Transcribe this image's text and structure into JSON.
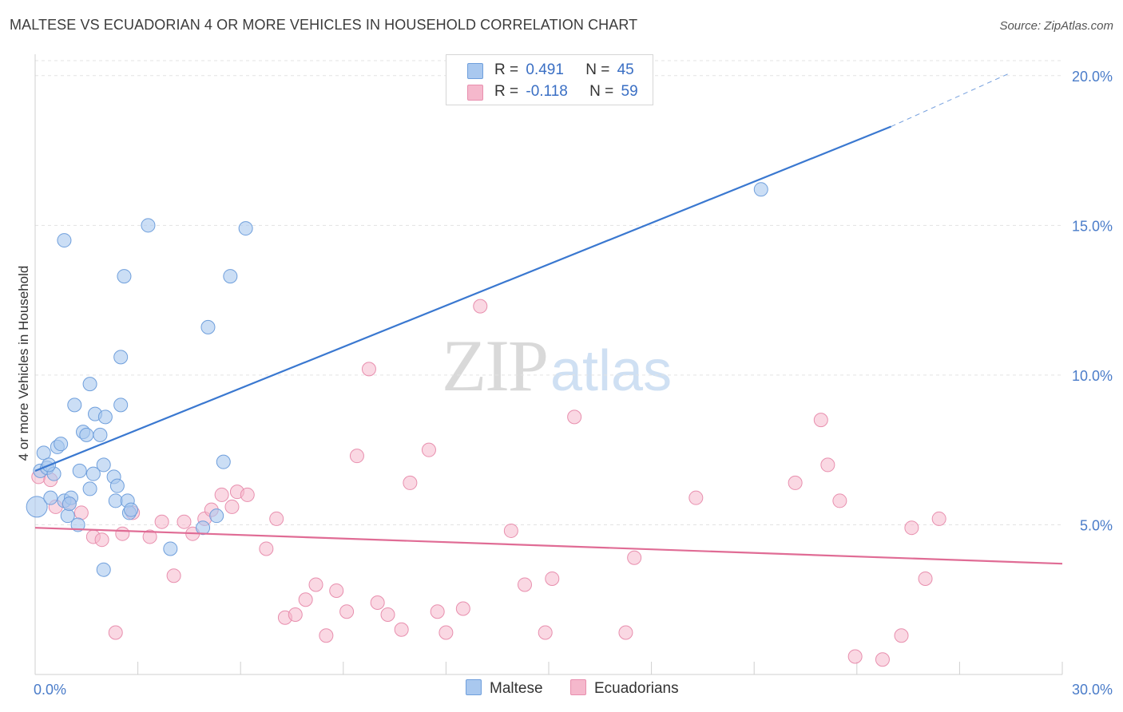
{
  "header": {
    "title": "MALTESE VS ECUADORIAN 4 OR MORE VEHICLES IN HOUSEHOLD CORRELATION CHART",
    "source": "Source: ZipAtlas.com"
  },
  "watermark": {
    "zip": "ZIP",
    "atlas": "atlas"
  },
  "legend": {
    "rows": [
      {
        "r_label": "R = ",
        "r_value": "0.491",
        "n_label": "N = ",
        "n_value": "45",
        "color": "#a9c8ef"
      },
      {
        "r_label": "R = ",
        "r_value": "-0.118",
        "n_label": "N = ",
        "n_value": "59",
        "color": "#f5b8cc"
      }
    ]
  },
  "bottom_legend": {
    "maltese": "Maltese",
    "ecuadorians": "Ecuadorians"
  },
  "colors": {
    "maltese_fill": "#a9c8ef",
    "maltese_stroke": "#6f9fdc",
    "maltese_line": "#3a78d0",
    "ecuador_fill": "#f5b8cc",
    "ecuador_stroke": "#e88fae",
    "ecuador_line": "#e06c95",
    "axis_label": "#4a7cc9",
    "grid": "#e3e3e3"
  },
  "chart_data": {
    "type": "scatter",
    "title": "MALTESE VS ECUADORIAN 4 OR MORE VEHICLES IN HOUSEHOLD CORRELATION CHART",
    "xlabel": "",
    "ylabel": "4 or more Vehicles in Household",
    "xlim": [
      0,
      30
    ],
    "ylim": [
      0,
      20.5
    ],
    "x_tick_labels": [
      {
        "value": 0,
        "label": "0.0%"
      },
      {
        "value": 30,
        "label": "30.0%"
      }
    ],
    "y_tick_labels": [
      {
        "value": 5,
        "label": "5.0%"
      },
      {
        "value": 10,
        "label": "10.0%"
      },
      {
        "value": 15,
        "label": "15.0%"
      },
      {
        "value": 20,
        "label": "20.0%"
      }
    ],
    "grid": true,
    "legend_position": "top-center",
    "series": [
      {
        "name": "Maltese",
        "r": 0.491,
        "n": 45,
        "trend": {
          "x0": 0,
          "y0": 6.8,
          "x1": 25,
          "y1": 18.3,
          "dashed_to_x": 28.5,
          "dashed_to_y": 20.1
        },
        "points": [
          [
            0.05,
            5.6
          ],
          [
            0.15,
            6.8
          ],
          [
            0.25,
            7.4
          ],
          [
            0.35,
            6.9
          ],
          [
            0.45,
            5.9
          ],
          [
            0.55,
            6.7
          ],
          [
            0.65,
            7.6
          ],
          [
            0.75,
            7.7
          ],
          [
            0.85,
            5.8
          ],
          [
            0.95,
            5.3
          ],
          [
            1.05,
            5.9
          ],
          [
            1.15,
            9.0
          ],
          [
            1.25,
            5.0
          ],
          [
            1.3,
            6.8
          ],
          [
            1.4,
            8.1
          ],
          [
            1.5,
            8.0
          ],
          [
            1.6,
            9.7
          ],
          [
            1.6,
            6.2
          ],
          [
            1.7,
            6.7
          ],
          [
            1.75,
            8.7
          ],
          [
            1.9,
            8.0
          ],
          [
            2.0,
            3.5
          ],
          [
            2.0,
            7.0
          ],
          [
            2.05,
            8.6
          ],
          [
            2.3,
            6.6
          ],
          [
            2.35,
            5.8
          ],
          [
            2.4,
            6.3
          ],
          [
            2.5,
            10.6
          ],
          [
            2.5,
            9.0
          ],
          [
            2.6,
            13.3
          ],
          [
            2.7,
            5.8
          ],
          [
            2.75,
            5.4
          ],
          [
            2.8,
            5.5
          ],
          [
            0.85,
            14.5
          ],
          [
            3.3,
            15.0
          ],
          [
            3.95,
            4.2
          ],
          [
            4.9,
            4.9
          ],
          [
            5.05,
            11.6
          ],
          [
            5.3,
            5.3
          ],
          [
            5.5,
            7.1
          ],
          [
            5.7,
            13.3
          ],
          [
            6.15,
            14.9
          ],
          [
            21.2,
            16.2
          ],
          [
            0.4,
            7.0
          ],
          [
            1.0,
            5.7
          ]
        ]
      },
      {
        "name": "Ecuadorians",
        "r": -0.118,
        "n": 59,
        "trend": {
          "x0": 0,
          "y0": 4.9,
          "x1": 30,
          "y1": 3.7
        },
        "points": [
          [
            0.1,
            6.6
          ],
          [
            0.45,
            6.5
          ],
          [
            0.6,
            5.6
          ],
          [
            1.0,
            5.7
          ],
          [
            1.35,
            5.4
          ],
          [
            1.7,
            4.6
          ],
          [
            1.95,
            4.5
          ],
          [
            2.35,
            1.4
          ],
          [
            2.55,
            4.7
          ],
          [
            2.85,
            5.4
          ],
          [
            3.35,
            4.6
          ],
          [
            3.7,
            5.1
          ],
          [
            4.05,
            3.3
          ],
          [
            4.35,
            5.1
          ],
          [
            4.6,
            4.7
          ],
          [
            4.95,
            5.2
          ],
          [
            5.15,
            5.5
          ],
          [
            5.45,
            6.0
          ],
          [
            5.75,
            5.6
          ],
          [
            5.9,
            6.1
          ],
          [
            6.2,
            6.0
          ],
          [
            6.75,
            4.2
          ],
          [
            7.05,
            5.2
          ],
          [
            7.3,
            1.9
          ],
          [
            7.6,
            2.0
          ],
          [
            7.9,
            2.5
          ],
          [
            8.2,
            3.0
          ],
          [
            8.5,
            1.3
          ],
          [
            8.8,
            2.8
          ],
          [
            9.1,
            2.1
          ],
          [
            9.4,
            7.3
          ],
          [
            9.75,
            10.2
          ],
          [
            10.0,
            2.4
          ],
          [
            10.3,
            2.0
          ],
          [
            10.7,
            1.5
          ],
          [
            10.95,
            6.4
          ],
          [
            11.5,
            7.5
          ],
          [
            11.75,
            2.1
          ],
          [
            12.0,
            1.4
          ],
          [
            12.5,
            2.2
          ],
          [
            13.0,
            12.3
          ],
          [
            13.9,
            4.8
          ],
          [
            14.3,
            3.0
          ],
          [
            14.9,
            1.4
          ],
          [
            15.1,
            3.2
          ],
          [
            15.75,
            8.6
          ],
          [
            17.25,
            1.4
          ],
          [
            17.5,
            3.9
          ],
          [
            19.3,
            5.9
          ],
          [
            22.2,
            6.4
          ],
          [
            22.95,
            8.5
          ],
          [
            23.15,
            7.0
          ],
          [
            23.5,
            5.8
          ],
          [
            23.95,
            0.6
          ],
          [
            24.75,
            0.5
          ],
          [
            25.3,
            1.3
          ],
          [
            25.6,
            4.9
          ],
          [
            26.0,
            3.2
          ],
          [
            26.4,
            5.2
          ]
        ]
      }
    ]
  }
}
